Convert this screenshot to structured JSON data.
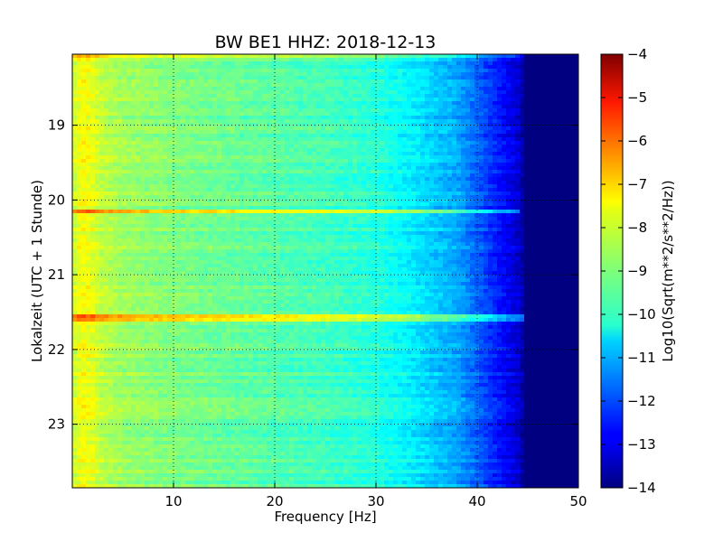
{
  "chart_data": {
    "type": "heatmap",
    "title": "BW BE1 HHZ: 2018-12-13",
    "xlabel": "Frequency [Hz]",
    "ylabel": "Lokalzeit (UTC + 1 Stunde)",
    "xlim": [
      0,
      50
    ],
    "ylim": [
      18.05,
      23.85
    ],
    "x_ticks": [
      10,
      20,
      30,
      40,
      50
    ],
    "x_tick_labels": [
      "10",
      "20",
      "30",
      "40",
      "50"
    ],
    "y_ticks": [
      19,
      20,
      21,
      22,
      23
    ],
    "y_tick_labels": [
      "19",
      "20",
      "21",
      "22",
      "23"
    ],
    "y_inverted": true,
    "grid": true,
    "colormap": "jet",
    "colorbar": {
      "label": "Log10(Sqrt(m**2/s**2/Hz))",
      "range": [
        -14,
        -4
      ],
      "ticks": [
        -4,
        -5,
        -6,
        -7,
        -8,
        -9,
        -10,
        -11,
        -12,
        -13,
        -14
      ],
      "tick_labels": [
        "−4",
        "−5",
        "−6",
        "−7",
        "−8",
        "−9",
        "−10",
        "−11",
        "−12",
        "−13",
        "−14"
      ]
    },
    "spectral_profile": {
      "frequency_hz": [
        0,
        1,
        2,
        3,
        5,
        10,
        15,
        20,
        25,
        30,
        33,
        36,
        38,
        40,
        42,
        44,
        45,
        50
      ],
      "value": [
        -8.3,
        -7.8,
        -8.0,
        -8.4,
        -8.7,
        -9.0,
        -9.2,
        -9.4,
        -9.6,
        -9.9,
        -10.3,
        -10.8,
        -11.1,
        -11.8,
        -12.5,
        -13.2,
        -14,
        -14
      ]
    },
    "high_energy_bands": [
      {
        "time": 20.15,
        "value_offset": 1.8,
        "max_frequency_hz": 44
      },
      {
        "time": 21.58,
        "value_offset": 1.6,
        "max_frequency_hz": 45
      },
      {
        "time": 18.05,
        "value_offset": 1.2,
        "max_frequency_hz": 46
      }
    ]
  }
}
